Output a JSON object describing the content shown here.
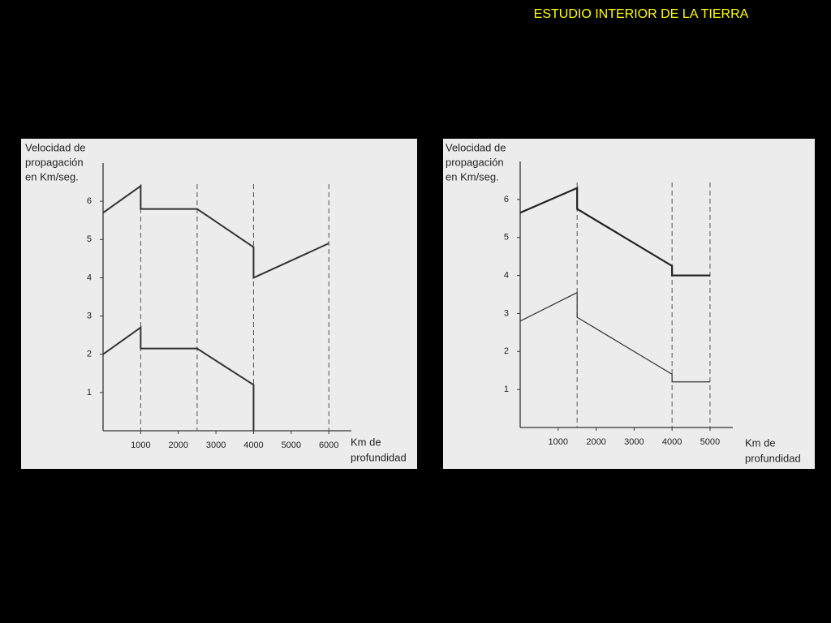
{
  "title": "ESTUDIO INTERIOR DE LA TIERRA",
  "chart_data": [
    {
      "type": "line",
      "ylabel": [
        "Velocidad de",
        "propagación",
        "en Km/seg."
      ],
      "xlabel": [
        "Km de",
        "profundidad"
      ],
      "xlim": [
        0,
        6600
      ],
      "ylim": [
        0,
        7
      ],
      "xticks": [
        1000,
        2000,
        3000,
        4000,
        5000,
        6000
      ],
      "yticks": [
        1,
        2,
        3,
        4,
        5,
        6
      ],
      "vlines": [
        1000,
        2500,
        4000,
        6000
      ],
      "series": [
        {
          "color": "#333333",
          "line_width": 2,
          "x": [
            0,
            1000,
            1000,
            2500,
            4000,
            4000,
            6000
          ],
          "values": [
            5.7,
            6.4,
            5.8,
            5.8,
            4.8,
            4.0,
            4.9
          ]
        },
        {
          "color": "#333333",
          "line_width": 2,
          "x": [
            0,
            1000,
            1000,
            2500,
            4000,
            4000
          ],
          "values": [
            2.0,
            2.7,
            2.15,
            2.15,
            1.2,
            0
          ]
        }
      ]
    },
    {
      "type": "line",
      "ylabel": [
        "Velocidad de",
        "propagación",
        "en Km/seg."
      ],
      "xlabel": [
        "Km de",
        "profundidad"
      ],
      "xlim": [
        0,
        5600
      ],
      "ylim": [
        0,
        7
      ],
      "xticks": [
        1000,
        2000,
        3000,
        4000,
        5000
      ],
      "yticks": [
        1,
        2,
        3,
        4,
        5,
        6
      ],
      "vlines": [
        1500,
        4000,
        5000
      ],
      "series": [
        {
          "color": "#222222",
          "line_width": 2.2,
          "x": [
            0,
            1500,
            1500,
            4000,
            4000,
            5000
          ],
          "values": [
            5.65,
            6.3,
            5.75,
            4.25,
            4.0,
            4.0
          ]
        },
        {
          "color": "#333333",
          "line_width": 1.2,
          "x": [
            0,
            1500,
            1500,
            4000,
            4000,
            5000
          ],
          "values": [
            2.8,
            3.55,
            2.9,
            1.4,
            1.2,
            1.2
          ]
        }
      ]
    }
  ]
}
